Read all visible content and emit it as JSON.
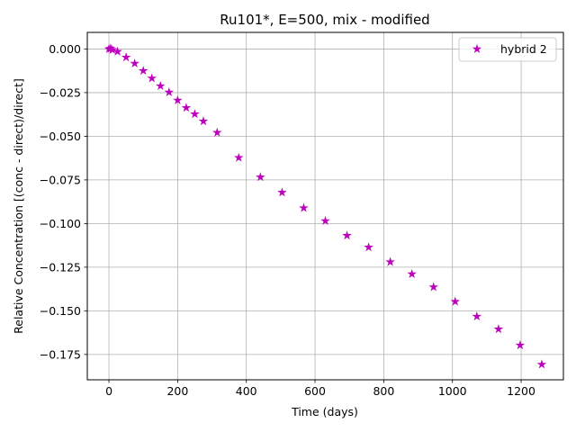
{
  "chart_data": {
    "type": "scatter",
    "title": "Ru101*, E=500, mix - modified",
    "xlabel": "Time (days)",
    "ylabel": "Relative Concentration [(conc - direct)/direct]",
    "xlim": [
      -63,
      1323
    ],
    "ylim": [
      -0.1895,
      0.0095
    ],
    "grid": true,
    "legend_position": "top-right",
    "xticks": [
      0,
      200,
      400,
      600,
      800,
      1000,
      1200
    ],
    "xtick_labels": [
      "0",
      "200",
      "400",
      "600",
      "800",
      "1000",
      "1200"
    ],
    "yticks": [
      0.0,
      -0.025,
      -0.05,
      -0.075,
      -0.1,
      -0.125,
      -0.15,
      -0.175
    ],
    "ytick_labels": [
      "0.000",
      "−0.025",
      "−0.050",
      "−0.075",
      "−0.100",
      "−0.125",
      "−0.150",
      "−0.175"
    ],
    "series": [
      {
        "name": "hybrid 2",
        "color": "#bf00bf",
        "marker": "star",
        "x": [
          0,
          5,
          10,
          25,
          50,
          75,
          100,
          125,
          150,
          175,
          200,
          225,
          250,
          275,
          315,
          378,
          441,
          504,
          567,
          630,
          693,
          756,
          819,
          882,
          945,
          1008,
          1071,
          1134,
          1197,
          1260
        ],
        "y": [
          0.0,
          0.0003,
          -0.0005,
          -0.0015,
          -0.0048,
          -0.0083,
          -0.0125,
          -0.0168,
          -0.0212,
          -0.0248,
          -0.0294,
          -0.0337,
          -0.0373,
          -0.0414,
          -0.0479,
          -0.0623,
          -0.0734,
          -0.0822,
          -0.0911,
          -0.0985,
          -0.1069,
          -0.1136,
          -0.122,
          -0.1289,
          -0.1364,
          -0.1447,
          -0.1532,
          -0.1605,
          -0.1697,
          -0.1807
        ]
      }
    ]
  }
}
